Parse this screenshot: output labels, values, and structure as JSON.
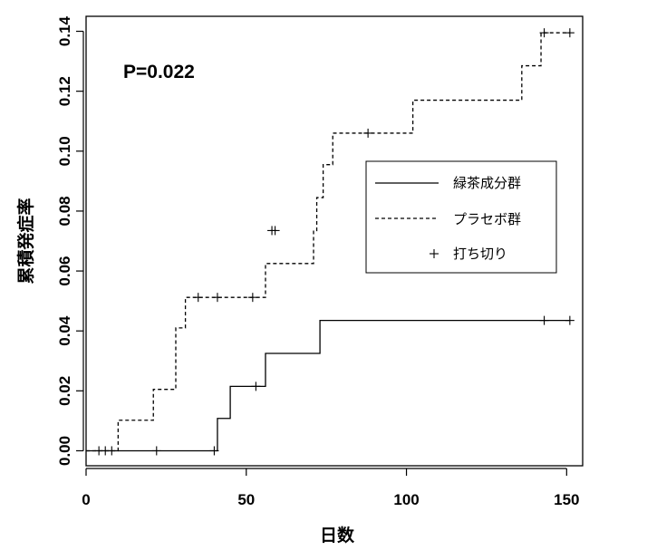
{
  "chart_data": {
    "type": "line",
    "xlabel": "日数",
    "ylabel": "累積発症率",
    "xlim": [
      0,
      155
    ],
    "ylim": [
      -0.005,
      0.145
    ],
    "x_ticks": [
      0,
      50,
      100,
      150
    ],
    "y_ticks": [
      0.0,
      0.02,
      0.04,
      0.06,
      0.08,
      0.1,
      0.12,
      0.14
    ],
    "x_tick_labels": [
      "0",
      "50",
      "100",
      "150"
    ],
    "y_tick_labels": [
      "0.00",
      "0.02",
      "0.04",
      "0.06",
      "0.08",
      "0.10",
      "0.12",
      "0.14"
    ],
    "grid": false,
    "annotation": "P=0.022",
    "legend": {
      "position": "right",
      "entries": [
        {
          "label": "緑茶成分群",
          "style": "solid"
        },
        {
          "label": "プラセボ群",
          "style": "dashed"
        },
        {
          "label": "打ち切り",
          "style": "plus"
        }
      ]
    },
    "series": [
      {
        "name": "緑茶成分群",
        "style": "solid",
        "step_x": [
          0,
          41,
          43,
          45,
          55,
          56,
          73,
          151
        ],
        "step_y": [
          0,
          0.0108,
          0.0108,
          0.0215,
          0.0215,
          0.0325,
          0.0435,
          0.0435
        ],
        "censored_x": [
          4,
          6,
          8,
          22,
          40,
          53,
          143,
          151
        ],
        "censored_y": [
          0,
          0,
          0,
          0,
          0,
          0.0215,
          0.0435,
          0.0435
        ]
      },
      {
        "name": "プラセボ群",
        "style": "dashed",
        "step_x": [
          0,
          10,
          21,
          28,
          31,
          55,
          56,
          71,
          72,
          74,
          77,
          102,
          136,
          142,
          151
        ],
        "step_y": [
          0,
          0.0102,
          0.0205,
          0.041,
          0.0512,
          0.0512,
          0.0625,
          0.0735,
          0.0845,
          0.0955,
          0.106,
          0.117,
          0.1285,
          0.1395,
          0.1395
        ],
        "censored_x": [
          35,
          41,
          52,
          58,
          59,
          88,
          143,
          151
        ],
        "censored_y": [
          0.0512,
          0.0512,
          0.0512,
          0.0735,
          0.0735,
          0.106,
          0.1395,
          0.1395
        ]
      }
    ]
  }
}
